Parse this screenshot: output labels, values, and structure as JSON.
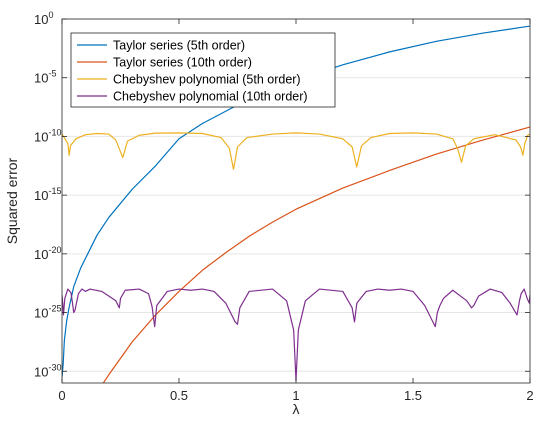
{
  "chart_data": {
    "type": "line",
    "title": "",
    "xlabel": "λ",
    "ylabel": "Squared error",
    "xlim": [
      0,
      2
    ],
    "ylim_exponent": [
      -31,
      0
    ],
    "yscale": "log",
    "grid": "horizontal",
    "legend_placement": "top-left",
    "x_ticks": [
      {
        "value": 0,
        "label": "0"
      },
      {
        "value": 0.5,
        "label": "0.5"
      },
      {
        "value": 1,
        "label": "1"
      },
      {
        "value": 1.5,
        "label": "1.5"
      },
      {
        "value": 2,
        "label": "2"
      }
    ],
    "y_ticks": [
      {
        "exp": 0,
        "base": "10",
        "exponent": "0"
      },
      {
        "exp": -5,
        "base": "10",
        "exponent": "-5"
      },
      {
        "exp": -10,
        "base": "10",
        "exponent": "-10"
      },
      {
        "exp": -15,
        "base": "10",
        "exponent": "-15"
      },
      {
        "exp": -20,
        "base": "10",
        "exponent": "-20"
      },
      {
        "exp": -25,
        "base": "10",
        "exponent": "-25"
      },
      {
        "exp": -30,
        "base": "10",
        "exponent": "-30"
      }
    ],
    "series": [
      {
        "name": "Taylor series (5th order)",
        "color": "#0072BD",
        "x": [
          0.0,
          0.005,
          0.01,
          0.02,
          0.03,
          0.05,
          0.08,
          0.1,
          0.15,
          0.2,
          0.3,
          0.4,
          0.5,
          0.6,
          0.8,
          1.0,
          1.2,
          1.4,
          1.6,
          1.8,
          2.0
        ],
        "log10_y": [
          -30.5,
          -29.4,
          -27.4,
          -25.7,
          -24.6,
          -22.8,
          -21.2,
          -20.4,
          -18.4,
          -16.9,
          -14.5,
          -12.5,
          -10.2,
          -8.9,
          -6.8,
          -5.2,
          -3.9,
          -2.8,
          -1.9,
          -1.2,
          -0.6
        ]
      },
      {
        "name": "Taylor series (10th order)",
        "color": "#D95319",
        "x": [
          0.16,
          0.2,
          0.3,
          0.4,
          0.5,
          0.6,
          0.7,
          0.8,
          0.9,
          1.0,
          1.2,
          1.4,
          1.6,
          1.8,
          2.0
        ],
        "log10_y": [
          -31.5,
          -30.3,
          -27.5,
          -25.2,
          -23.2,
          -21.4,
          -19.9,
          -18.5,
          -17.3,
          -16.2,
          -14.4,
          -12.9,
          -11.5,
          -10.3,
          -9.2
        ]
      },
      {
        "name": "Chebyshev polynomial (5th order)",
        "color": "#EDB120",
        "x": [
          0.0,
          0.025,
          0.0305,
          0.036,
          0.06,
          0.1,
          0.15,
          0.2,
          0.23,
          0.2596,
          0.28,
          0.33,
          0.4,
          0.5,
          0.6,
          0.68,
          0.715,
          0.7329,
          0.75,
          0.79,
          0.9,
          1.0,
          1.1,
          1.2,
          1.24,
          1.2596,
          1.28,
          1.32,
          1.4,
          1.5,
          1.6,
          1.67,
          1.69,
          1.7071,
          1.725,
          1.76,
          1.85,
          1.94,
          1.96,
          1.9695,
          1.978,
          1.99,
          2.0
        ],
        "log10_y": [
          -9.8,
          -10.6,
          -11.6,
          -10.8,
          -10.2,
          -9.85,
          -9.75,
          -9.8,
          -10.3,
          -11.8,
          -10.4,
          -9.9,
          -9.72,
          -9.7,
          -9.75,
          -10.1,
          -11.0,
          -12.8,
          -10.9,
          -10.1,
          -9.8,
          -9.7,
          -9.8,
          -10.2,
          -10.9,
          -12.6,
          -10.8,
          -10.1,
          -9.75,
          -9.7,
          -9.8,
          -10.2,
          -11.0,
          -12.2,
          -10.8,
          -10.2,
          -9.85,
          -10.3,
          -10.9,
          -11.6,
          -10.6,
          -9.9,
          -9.8
        ]
      },
      {
        "name": "Chebyshev polynomial (10th order)",
        "color": "#7E2F8E",
        "x": [
          0.0,
          0.003,
          0.0062,
          0.012,
          0.025,
          0.038,
          0.045,
          0.05,
          0.07,
          0.085,
          0.0555,
          0.1,
          0.12,
          0.17,
          0.23,
          0.245,
          0.25,
          0.27,
          0.33,
          0.37,
          0.385,
          0.396,
          0.405,
          0.45,
          0.5,
          0.55,
          0.6,
          0.65,
          0.7,
          0.74,
          0.75,
          0.76,
          0.8,
          0.9,
          0.96,
          0.99,
          1.0,
          1.01,
          1.04,
          1.1,
          1.2,
          1.24,
          1.25,
          1.26,
          1.3,
          1.35,
          1.4,
          1.45,
          1.5,
          1.55,
          1.595,
          1.604,
          1.615,
          1.63,
          1.67,
          1.73,
          1.75,
          1.76,
          1.78,
          1.83,
          1.88,
          1.915,
          1.9445,
          1.955,
          1.962,
          1.975,
          1.988,
          1.997,
          2.0
        ],
        "log10_y": [
          -23.5,
          -24.2,
          -25.2,
          -23.8,
          -23.0,
          -23.3,
          -24.2,
          -25.0,
          -23.4,
          -23.0,
          -24.8,
          -23.2,
          -23.0,
          -23.2,
          -24.0,
          -24.6,
          -23.8,
          -23.1,
          -23.0,
          -23.4,
          -24.5,
          -26.2,
          -24.4,
          -23.2,
          -23.0,
          -23.1,
          -23.0,
          -23.2,
          -24.2,
          -25.8,
          -26.0,
          -24.6,
          -23.2,
          -23.0,
          -24.0,
          -26.5,
          -30.8,
          -26.5,
          -24.0,
          -23.0,
          -23.2,
          -24.6,
          -25.8,
          -24.2,
          -23.2,
          -23.0,
          -23.1,
          -23.0,
          -23.2,
          -24.4,
          -26.2,
          -25.0,
          -24.4,
          -23.8,
          -23.1,
          -24.0,
          -24.6,
          -24.4,
          -23.6,
          -23.0,
          -23.3,
          -24.2,
          -25.2,
          -24.0,
          -23.4,
          -23.0,
          -23.8,
          -24.2,
          -23.5
        ]
      }
    ]
  },
  "legend": {
    "items": [
      {
        "label": "Taylor series (5th order)"
      },
      {
        "label": "Taylor series (10th order)"
      },
      {
        "label": "Chebyshev polynomial (5th order)"
      },
      {
        "label": "Chebyshev polynomial (10th order)"
      }
    ]
  }
}
